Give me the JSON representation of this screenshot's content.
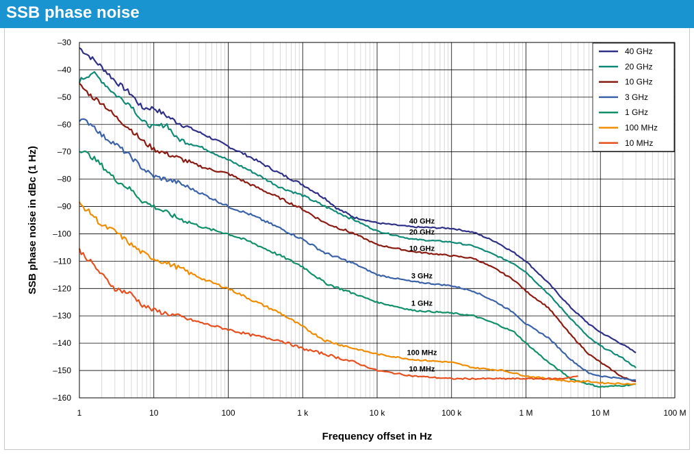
{
  "header": {
    "title": "SSB phase noise"
  },
  "colors": {
    "header_bg": "#1a93d1"
  },
  "chart_data": {
    "type": "line",
    "title": "SSB phase noise",
    "xlabel": "Frequency offset in Hz",
    "ylabel": "SSB phase noise in dBc (1 Hz)",
    "xscale": "log",
    "xlim": [
      1,
      100000000
    ],
    "ylim": [
      -160,
      -30
    ],
    "x_ticks": [
      1,
      10,
      100,
      1000,
      10000,
      100000,
      1000000,
      10000000,
      100000000
    ],
    "x_tick_labels": [
      "1",
      "10",
      "100",
      "1 k",
      "10 k",
      "100 k",
      "1 M",
      "10 M",
      "100 M"
    ],
    "y_ticks": [
      -30,
      -40,
      -50,
      -60,
      -70,
      -80,
      -90,
      -100,
      -110,
      -120,
      -130,
      -140,
      -150,
      -160
    ],
    "y_tick_labels": [
      "–30",
      "–40",
      "–50",
      "–60",
      "–70",
      "–80",
      "–90",
      "–100",
      "–110",
      "–120",
      "–130",
      "–140",
      "–150",
      "–160"
    ],
    "grid": true,
    "legend_position": "top-right",
    "series": [
      {
        "name": "40 GHz",
        "color": "#2e2f86",
        "label": "40 GHz",
        "label_at": [
          40000,
          -97.3
        ],
        "points": [
          [
            1,
            -32
          ],
          [
            1.5,
            -36
          ],
          [
            2,
            -39
          ],
          [
            3,
            -44
          ],
          [
            5,
            -49
          ],
          [
            7,
            -54
          ],
          [
            10,
            -54
          ],
          [
            20,
            -59
          ],
          [
            50,
            -64
          ],
          [
            100,
            -68
          ],
          [
            200,
            -72
          ],
          [
            500,
            -78
          ],
          [
            1000,
            -82
          ],
          [
            2000,
            -87
          ],
          [
            3000,
            -91
          ],
          [
            5000,
            -94
          ],
          [
            10000,
            -96
          ],
          [
            30000,
            -97.5
          ],
          [
            100000,
            -98
          ],
          [
            200000,
            -99.5
          ],
          [
            400000,
            -103
          ],
          [
            700000,
            -107
          ],
          [
            1000000,
            -110
          ],
          [
            2000000,
            -118
          ],
          [
            4000000,
            -127
          ],
          [
            7000000,
            -133
          ],
          [
            10000000,
            -136
          ],
          [
            20000000,
            -140.5
          ],
          [
            30000000,
            -143.5
          ]
        ]
      },
      {
        "name": "20 GHz",
        "color": "#0f8a76",
        "label": "20 GHz",
        "label_at": [
          40000,
          -101.3
        ],
        "points": [
          [
            1,
            -44
          ],
          [
            1.5,
            -41
          ],
          [
            2,
            -44
          ],
          [
            3,
            -49
          ],
          [
            5,
            -53
          ],
          [
            7,
            -59
          ],
          [
            10,
            -61
          ],
          [
            15,
            -60
          ],
          [
            20,
            -65
          ],
          [
            50,
            -69
          ],
          [
            100,
            -73
          ],
          [
            200,
            -77
          ],
          [
            500,
            -83
          ],
          [
            1000,
            -86
          ],
          [
            2000,
            -90
          ],
          [
            5000,
            -95
          ],
          [
            10000,
            -99
          ],
          [
            30000,
            -102
          ],
          [
            100000,
            -103
          ],
          [
            200000,
            -104.5
          ],
          [
            400000,
            -108
          ],
          [
            700000,
            -111
          ],
          [
            1000000,
            -114
          ],
          [
            2000000,
            -122
          ],
          [
            4000000,
            -131
          ],
          [
            7000000,
            -138
          ],
          [
            10000000,
            -141
          ],
          [
            20000000,
            -145.5
          ],
          [
            30000000,
            -149
          ]
        ]
      },
      {
        "name": "10 GHz",
        "color": "#8b1a11",
        "label": "10 GHz",
        "label_at": [
          40000,
          -107.3
        ],
        "points": [
          [
            1,
            -45.5
          ],
          [
            1.5,
            -50
          ],
          [
            2,
            -52
          ],
          [
            3,
            -57
          ],
          [
            5,
            -62
          ],
          [
            7,
            -66
          ],
          [
            10,
            -69
          ],
          [
            20,
            -72
          ],
          [
            50,
            -76
          ],
          [
            100,
            -78
          ],
          [
            200,
            -82
          ],
          [
            500,
            -87
          ],
          [
            1000,
            -91
          ],
          [
            2000,
            -96
          ],
          [
            5000,
            -100
          ],
          [
            10000,
            -104
          ],
          [
            30000,
            -106.5
          ],
          [
            100000,
            -108
          ],
          [
            200000,
            -109
          ],
          [
            400000,
            -113
          ],
          [
            700000,
            -117
          ],
          [
            1000000,
            -121
          ],
          [
            2000000,
            -127
          ],
          [
            4000000,
            -137
          ],
          [
            7000000,
            -144
          ],
          [
            10000000,
            -147
          ],
          [
            20000000,
            -152.5
          ],
          [
            30000000,
            -154
          ]
        ]
      },
      {
        "name": "3 GHz",
        "color": "#3a62a8",
        "label": "3 GHz",
        "label_at": [
          40000,
          -117.3
        ],
        "points": [
          [
            1,
            -58
          ],
          [
            1.5,
            -60
          ],
          [
            2,
            -64
          ],
          [
            3,
            -67
          ],
          [
            5,
            -72
          ],
          [
            7,
            -76
          ],
          [
            10,
            -79
          ],
          [
            20,
            -81
          ],
          [
            50,
            -86
          ],
          [
            100,
            -90
          ],
          [
            200,
            -93
          ],
          [
            500,
            -98
          ],
          [
            1000,
            -102
          ],
          [
            2000,
            -107
          ],
          [
            5000,
            -111
          ],
          [
            10000,
            -115
          ],
          [
            30000,
            -117.5
          ],
          [
            100000,
            -119
          ],
          [
            200000,
            -121
          ],
          [
            400000,
            -125
          ],
          [
            700000,
            -129
          ],
          [
            1000000,
            -133
          ],
          [
            2000000,
            -138
          ],
          [
            4000000,
            -146
          ],
          [
            7000000,
            -151
          ],
          [
            10000000,
            -152
          ],
          [
            20000000,
            -153
          ],
          [
            30000000,
            -153.5
          ]
        ]
      },
      {
        "name": "1 GHz",
        "color": "#109068",
        "label": "1 GHz",
        "label_at": [
          40000,
          -127.3
        ],
        "points": [
          [
            1,
            -69
          ],
          [
            1.5,
            -72
          ],
          [
            2,
            -75
          ],
          [
            3,
            -80
          ],
          [
            5,
            -84
          ],
          [
            7,
            -88
          ],
          [
            10,
            -90
          ],
          [
            20,
            -94
          ],
          [
            50,
            -98
          ],
          [
            100,
            -100
          ],
          [
            200,
            -103
          ],
          [
            500,
            -108
          ],
          [
            1000,
            -112
          ],
          [
            2000,
            -118
          ],
          [
            5000,
            -122
          ],
          [
            10000,
            -125
          ],
          [
            30000,
            -128
          ],
          [
            100000,
            -129
          ],
          [
            200000,
            -130
          ],
          [
            400000,
            -133
          ],
          [
            700000,
            -136
          ],
          [
            1000000,
            -140
          ],
          [
            2000000,
            -147
          ],
          [
            4000000,
            -153
          ],
          [
            7000000,
            -155
          ],
          [
            10000000,
            -156
          ],
          [
            20000000,
            -155.5
          ],
          [
            30000000,
            -155
          ]
        ]
      },
      {
        "name": "100 MHz",
        "color": "#f08c00",
        "label": "100 MHz",
        "label_at": [
          40000,
          -145.3
        ],
        "points": [
          [
            1,
            -89
          ],
          [
            1.5,
            -93
          ],
          [
            2,
            -97
          ],
          [
            3,
            -99
          ],
          [
            5,
            -104
          ],
          [
            7,
            -107
          ],
          [
            10,
            -109
          ],
          [
            20,
            -112
          ],
          [
            50,
            -117
          ],
          [
            100,
            -120
          ],
          [
            200,
            -124
          ],
          [
            500,
            -129
          ],
          [
            1000,
            -134
          ],
          [
            2000,
            -139
          ],
          [
            5000,
            -142
          ],
          [
            10000,
            -144
          ],
          [
            30000,
            -146
          ],
          [
            100000,
            -147
          ],
          [
            200000,
            -149
          ],
          [
            500000,
            -150
          ],
          [
            1000000,
            -152
          ],
          [
            2000000,
            -153
          ],
          [
            4000000,
            -154
          ],
          [
            7000000,
            -154
          ],
          [
            10000000,
            -154.5
          ],
          [
            20000000,
            -154.8
          ],
          [
            30000000,
            -155
          ]
        ]
      },
      {
        "name": "10 MHz",
        "color": "#e5501e",
        "label": "10 MHz",
        "label_at": [
          40000,
          -151.3
        ],
        "points": [
          [
            1,
            -106
          ],
          [
            1.5,
            -111
          ],
          [
            2,
            -115
          ],
          [
            3,
            -120
          ],
          [
            5,
            -122
          ],
          [
            7,
            -126
          ],
          [
            10,
            -128
          ],
          [
            20,
            -130
          ],
          [
            50,
            -133
          ],
          [
            100,
            -135
          ],
          [
            200,
            -137
          ],
          [
            500,
            -139
          ],
          [
            1000,
            -142
          ],
          [
            2000,
            -144
          ],
          [
            5000,
            -147
          ],
          [
            10000,
            -150
          ],
          [
            30000,
            -152
          ],
          [
            100000,
            -153
          ],
          [
            300000,
            -153
          ],
          [
            1000000,
            -153
          ],
          [
            3000000,
            -153
          ],
          [
            5000000,
            -152
          ]
        ]
      }
    ]
  }
}
